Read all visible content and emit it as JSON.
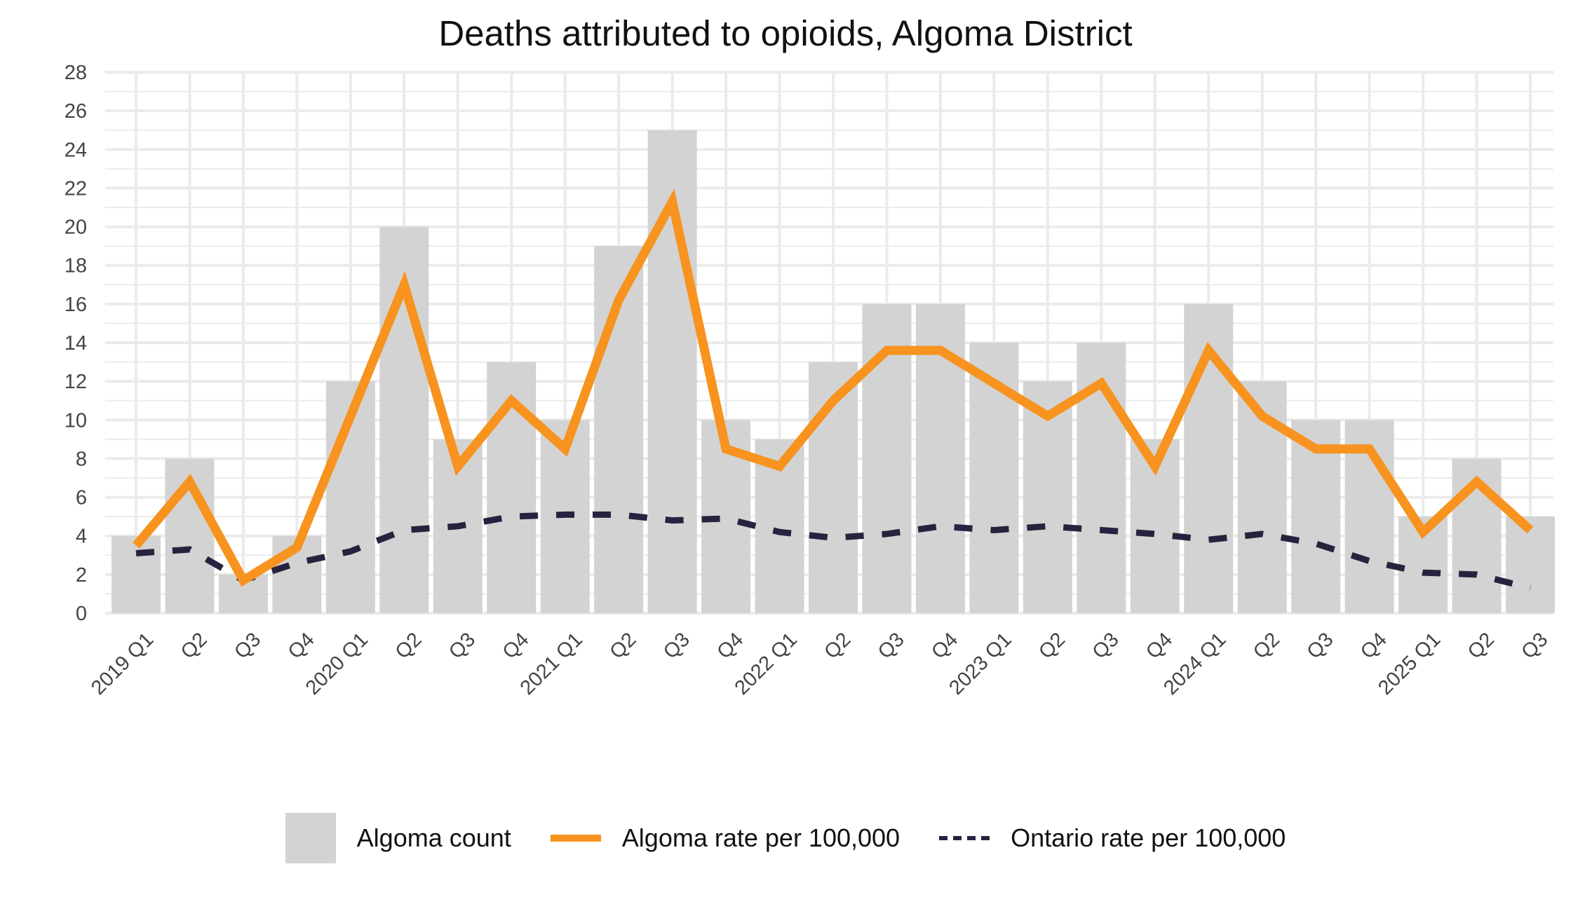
{
  "chart_data": {
    "type": "bar+line",
    "title": "Deaths attributed to opioids, Algoma District",
    "xlabel": "",
    "ylabel": "",
    "ylim": [
      0,
      28
    ],
    "yticks": [
      "0",
      "2",
      "4",
      "6",
      "8",
      "10",
      "12",
      "14",
      "16",
      "18",
      "20",
      "22",
      "24",
      "26",
      "28"
    ],
    "categories": [
      "2019 Q1",
      "Q2",
      "Q3",
      "Q4",
      "2020 Q1",
      "Q2",
      "Q3",
      "Q4",
      "2021 Q1",
      "Q2",
      "Q3",
      "Q4",
      "2022 Q1",
      "Q2",
      "Q3",
      "Q4",
      "2023 Q1",
      "Q2",
      "Q3",
      "Q4",
      "2024 Q1",
      "Q2",
      "Q3",
      "Q4",
      "2025 Q1",
      "Q2",
      "Q3"
    ],
    "grid": true,
    "legend_position": "bottom",
    "series": [
      {
        "name": "Algoma count",
        "type": "bar",
        "color": "#d3d3d3",
        "values": [
          4,
          8,
          2,
          4,
          12,
          20,
          9,
          13,
          10,
          19,
          25,
          10,
          9,
          13,
          16,
          16,
          14,
          12,
          14,
          9,
          16,
          12,
          10,
          10,
          5,
          8,
          5
        ]
      },
      {
        "name": "Algoma rate per 100,000",
        "type": "line",
        "color": "#f7931e",
        "values": [
          3.5,
          6.8,
          1.7,
          3.4,
          10.2,
          17.0,
          7.6,
          11.0,
          8.5,
          16.2,
          21.3,
          8.5,
          7.6,
          11.0,
          13.6,
          13.6,
          11.9,
          10.2,
          11.9,
          7.6,
          13.6,
          10.2,
          8.5,
          8.5,
          4.2,
          6.8,
          4.3
        ]
      },
      {
        "name": "Ontario rate per 100,000",
        "type": "dashed-line",
        "color": "#27233f",
        "values": [
          3.1,
          3.3,
          1.7,
          2.6,
          3.2,
          4.3,
          4.5,
          5.0,
          5.1,
          5.1,
          4.8,
          4.9,
          4.2,
          3.9,
          4.1,
          4.5,
          4.3,
          4.5,
          4.3,
          4.1,
          3.8,
          4.1,
          3.6,
          2.7,
          2.1,
          2.0,
          1.3
        ]
      }
    ]
  }
}
